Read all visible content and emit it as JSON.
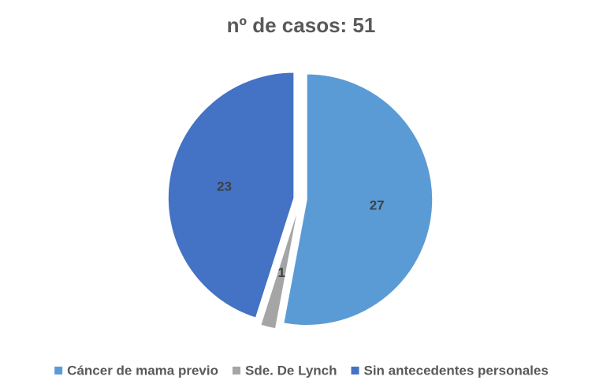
{
  "chart_data": {
    "type": "pie",
    "title": "nº de casos: 51",
    "categories": [
      "Cáncer de mama previo",
      "Sde. De Lynch",
      "Sin antecedentes personales"
    ],
    "values": [
      27,
      1,
      23
    ],
    "colors": [
      "#5b9bd5",
      "#a5a5a5",
      "#4472c4"
    ],
    "legend": "bottom"
  }
}
